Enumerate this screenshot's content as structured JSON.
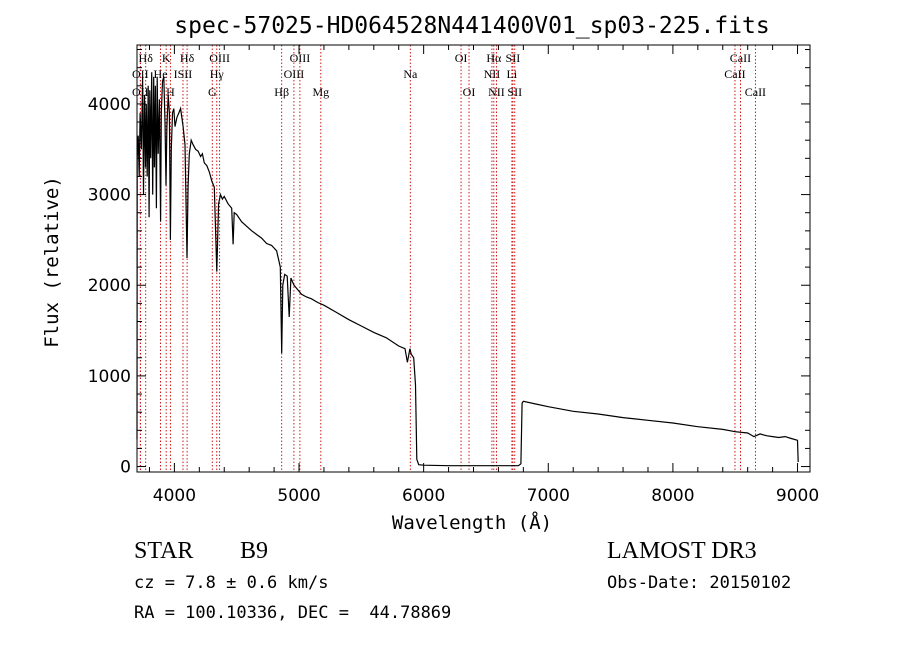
{
  "chart_data": {
    "type": "line",
    "title": "spec-57025-HD064528N441400V01_sp03-225.fits",
    "xlabel": "Wavelength (Å)",
    "ylabel": "Flux (relative)",
    "xlim": [
      3700,
      9100
    ],
    "ylim": [
      -60,
      4650
    ],
    "xticks": [
      4000,
      5000,
      6000,
      7000,
      8000,
      9000
    ],
    "yticks": [
      0,
      1000,
      2000,
      3000,
      4000
    ],
    "series": [
      {
        "name": "spectrum",
        "points": [
          [
            3700,
            300
          ],
          [
            3702,
            3400
          ],
          [
            3710,
            3650
          ],
          [
            3718,
            3200
          ],
          [
            3725,
            3900
          ],
          [
            3735,
            3500
          ],
          [
            3745,
            4300
          ],
          [
            3752,
            3000
          ],
          [
            3760,
            4100
          ],
          [
            3768,
            3300
          ],
          [
            3775,
            4000
          ],
          [
            3782,
            3200
          ],
          [
            3790,
            4200
          ],
          [
            3797,
            2750
          ],
          [
            3803,
            4150
          ],
          [
            3810,
            3400
          ],
          [
            3818,
            4350
          ],
          [
            3826,
            3000
          ],
          [
            3834,
            4300
          ],
          [
            3840,
            3300
          ],
          [
            3848,
            4200
          ],
          [
            3856,
            2850
          ],
          [
            3862,
            4300
          ],
          [
            3870,
            3450
          ],
          [
            3880,
            4050
          ],
          [
            3889,
            2700
          ],
          [
            3895,
            3900
          ],
          [
            3905,
            4250
          ],
          [
            3915,
            4300
          ],
          [
            3925,
            3800
          ],
          [
            3933,
            3100
          ],
          [
            3940,
            3750
          ],
          [
            3950,
            4100
          ],
          [
            3960,
            3900
          ],
          [
            3968,
            2500
          ],
          [
            3975,
            3500
          ],
          [
            3985,
            3900
          ],
          [
            3995,
            3950
          ],
          [
            4005,
            3750
          ],
          [
            4020,
            3850
          ],
          [
            4035,
            3900
          ],
          [
            4050,
            3950
          ],
          [
            4070,
            3750
          ],
          [
            4085,
            3550
          ],
          [
            4101,
            2300
          ],
          [
            4110,
            3100
          ],
          [
            4120,
            3450
          ],
          [
            4135,
            3600
          ],
          [
            4150,
            3550
          ],
          [
            4170,
            3500
          ],
          [
            4190,
            3480
          ],
          [
            4210,
            3420
          ],
          [
            4225,
            3450
          ],
          [
            4240,
            3350
          ],
          [
            4260,
            3320
          ],
          [
            4280,
            3250
          ],
          [
            4300,
            3150
          ],
          [
            4320,
            3080
          ],
          [
            4340,
            2150
          ],
          [
            4355,
            2900
          ],
          [
            4370,
            3000
          ],
          [
            4385,
            2950
          ],
          [
            4400,
            2980
          ],
          [
            4430,
            2900
          ],
          [
            4460,
            2850
          ],
          [
            4471,
            2450
          ],
          [
            4480,
            2800
          ],
          [
            4500,
            2780
          ],
          [
            4540,
            2700
          ],
          [
            4580,
            2650
          ],
          [
            4620,
            2600
          ],
          [
            4660,
            2560
          ],
          [
            4700,
            2520
          ],
          [
            4740,
            2460
          ],
          [
            4780,
            2440
          ],
          [
            4820,
            2380
          ],
          [
            4850,
            2200
          ],
          [
            4861,
            1250
          ],
          [
            4870,
            2000
          ],
          [
            4885,
            2120
          ],
          [
            4905,
            2100
          ],
          [
            4921,
            1650
          ],
          [
            4935,
            2080
          ],
          [
            4960,
            2000
          ],
          [
            4990,
            1950
          ],
          [
            5020,
            1900
          ],
          [
            5060,
            1870
          ],
          [
            5100,
            1850
          ],
          [
            5150,
            1810
          ],
          [
            5200,
            1780
          ],
          [
            5300,
            1700
          ],
          [
            5400,
            1620
          ],
          [
            5500,
            1550
          ],
          [
            5600,
            1480
          ],
          [
            5700,
            1420
          ],
          [
            5800,
            1330
          ],
          [
            5850,
            1300
          ],
          [
            5870,
            1150
          ],
          [
            5890,
            1300
          ],
          [
            5900,
            1240
          ],
          [
            5920,
            1200
          ],
          [
            5935,
            900
          ],
          [
            5945,
            80
          ],
          [
            5960,
            20
          ],
          [
            6000,
            15
          ],
          [
            6200,
            10
          ],
          [
            6400,
            10
          ],
          [
            6600,
            10
          ],
          [
            6760,
            10
          ],
          [
            6780,
            30
          ],
          [
            6790,
            700
          ],
          [
            6800,
            720
          ],
          [
            6900,
            690
          ],
          [
            7000,
            660
          ],
          [
            7200,
            610
          ],
          [
            7400,
            580
          ],
          [
            7600,
            540
          ],
          [
            7800,
            510
          ],
          [
            8000,
            480
          ],
          [
            8200,
            440
          ],
          [
            8400,
            410
          ],
          [
            8500,
            385
          ],
          [
            8600,
            370
          ],
          [
            8650,
            330
          ],
          [
            8700,
            360
          ],
          [
            8750,
            340
          ],
          [
            8800,
            330
          ],
          [
            8850,
            320
          ],
          [
            8900,
            330
          ],
          [
            8950,
            310
          ],
          [
            9000,
            290
          ],
          [
            9005,
            50
          ]
        ]
      }
    ],
    "lines": [
      {
        "label": "Hδ",
        "x": 3770,
        "row": 1
      },
      {
        "label": "K",
        "x": 3934,
        "row": 1
      },
      {
        "label": "Hδ",
        "x": 4102,
        "row": 1
      },
      {
        "label": "OIII",
        "x": 4363,
        "row": 1
      },
      {
        "label": "OIII",
        "x": 5007,
        "row": 1
      },
      {
        "label": "OI",
        "x": 6300,
        "row": 1
      },
      {
        "label": "Hα",
        "x": 6563,
        "row": 1
      },
      {
        "label": "SII",
        "x": 6716,
        "row": 1
      },
      {
        "label": "CaII",
        "x": 8542,
        "row": 1
      },
      {
        "label": "OII",
        "x": 3727,
        "row": 2
      },
      {
        "label": "He",
        "x": 3889,
        "row": 2
      },
      {
        "label": "ISII",
        "x": 4069,
        "row": 2
      },
      {
        "label": "Hγ",
        "x": 4340,
        "row": 2
      },
      {
        "label": "OIII",
        "x": 4959,
        "row": 2
      },
      {
        "label": "Na",
        "x": 5893,
        "row": 2
      },
      {
        "label": "NII",
        "x": 6548,
        "row": 2
      },
      {
        "label": "Li",
        "x": 6708,
        "row": 2
      },
      {
        "label": "CaII",
        "x": 8498,
        "row": 2
      },
      {
        "label": "OII",
        "x": 3727,
        "row": 3
      },
      {
        "label": "H",
        "x": 3968,
        "row": 3
      },
      {
        "label": "G",
        "x": 4304,
        "row": 3
      },
      {
        "label": "Hβ",
        "x": 4861,
        "row": 3
      },
      {
        "label": "Mg",
        "x": 5175,
        "row": 3
      },
      {
        "label": "OI",
        "x": 6364,
        "row": 3
      },
      {
        "label": "NII",
        "x": 6584,
        "row": 3
      },
      {
        "label": "SII",
        "x": 6731,
        "row": 3
      },
      {
        "label": "CaII",
        "x": 8662,
        "row": 3
      }
    ]
  },
  "info": {
    "object_type": "STAR",
    "subclass": "B9",
    "survey": "LAMOST DR3",
    "cz": "cz = 7.8 ± 0.6 km/s",
    "obs_date": "Obs-Date: 20150102",
    "coords": "RA = 100.10336, DEC =  44.78869"
  },
  "colors": {
    "axis": "#000000",
    "spectrum": "#000000",
    "marker_line": "#cc0000",
    "background": "#ffffff"
  }
}
